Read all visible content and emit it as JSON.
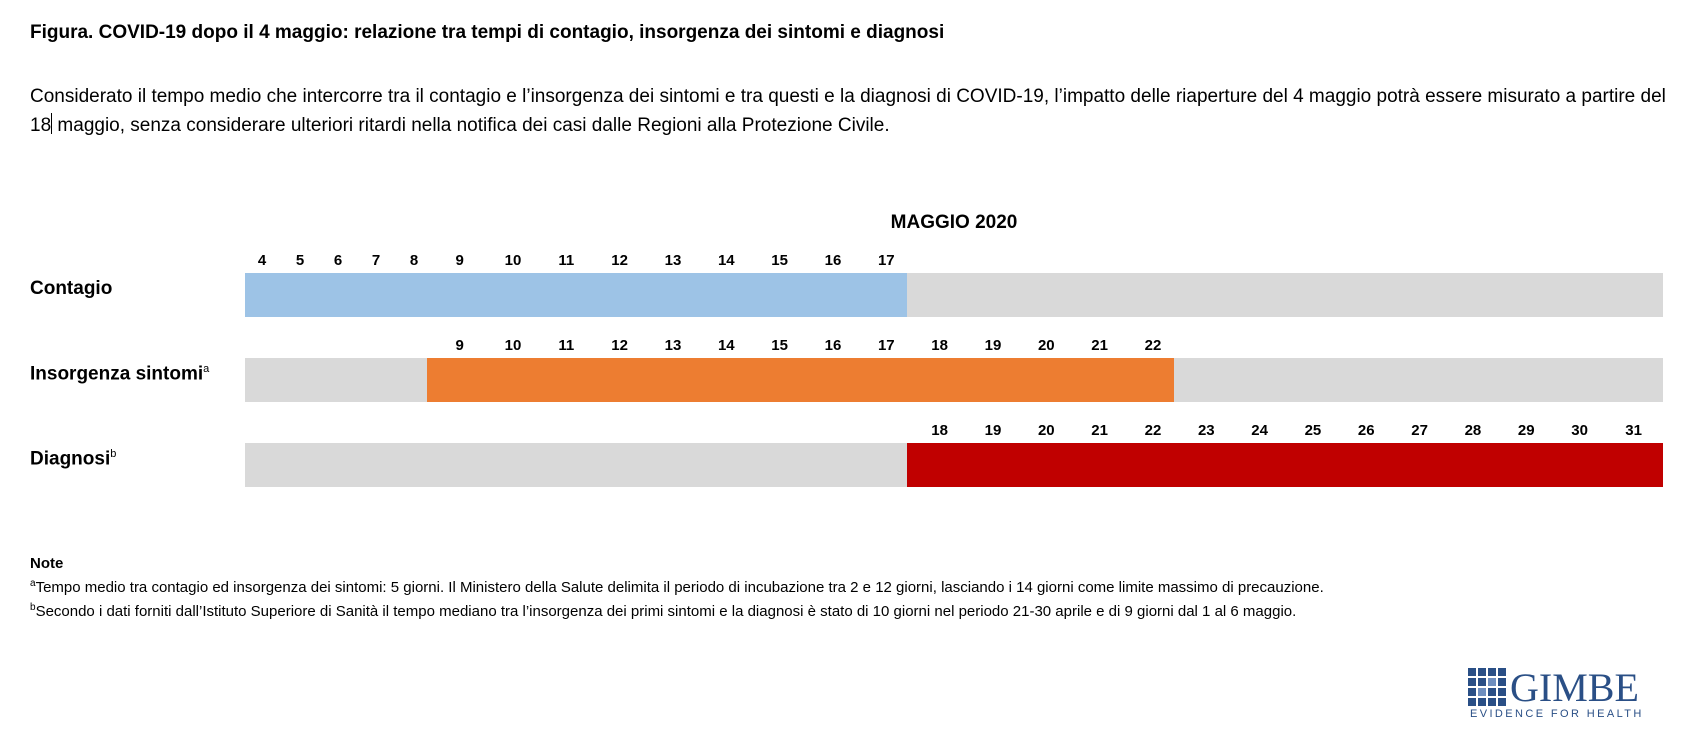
{
  "figure": {
    "title": "Figura. COVID-19 dopo il 4 maggio: relazione tra tempi di contagio, insorgenza dei sintomi e diagnosi",
    "intro_part1": "Considerato il tempo medio che intercorre tra il contagio e l’insorgenza dei sintomi e tra questi e la diagnosi di COVID-19, l’impatto delle riaperture del 4 maggio potrà essere misurato a partire del 18",
    "intro_part2": " maggio, senza considerare ulteriori ritardi nella notifica dei casi dalle Regioni alla Protezione Civile."
  },
  "timeline": {
    "month_label": "MAGGIO 2020",
    "start_day": 4,
    "end_day": 31,
    "rows": [
      {
        "label": "Contagio",
        "sup": "",
        "from": 4,
        "to": 17,
        "color": "#9dc3e6",
        "days": [
          "4",
          "5",
          "6",
          "7",
          "8",
          "9",
          "10",
          "11",
          "12",
          "13",
          "14",
          "15",
          "16",
          "17"
        ]
      },
      {
        "label": "Insorgenza sintomi",
        "sup": "a",
        "from": 9,
        "to": 22,
        "color": "#ed7d31",
        "days": [
          "9",
          "10",
          "11",
          "12",
          "13",
          "14",
          "15",
          "16",
          "17",
          "18",
          "19",
          "20",
          "21",
          "22"
        ]
      },
      {
        "label": "Diagnosi",
        "sup": "b",
        "from": 18,
        "to": 31,
        "color": "#c00000",
        "days": [
          "18",
          "19",
          "20",
          "21",
          "22",
          "23",
          "24",
          "25",
          "26",
          "27",
          "28",
          "29",
          "30",
          "31"
        ]
      }
    ],
    "background_color": "#d9d9d9"
  },
  "notes": {
    "title": "Note",
    "items": [
      {
        "marker": "a",
        "text": "Tempo medio tra contagio ed insorgenza dei sintomi: 5 giorni. Il Ministero della Salute delimita il periodo di incubazione tra 2 e 12 giorni, lasciando i 14 giorni come limite massimo di precauzione."
      },
      {
        "marker": "b",
        "text": "Secondo i dati forniti dall’Istituto Superiore di Sanità il tempo mediano tra l’insorgenza dei primi sintomi e la diagnosi è stato di 10 giorni nel periodo 21-30 aprile e di 9 giorni dal 1 al 6 maggio."
      }
    ]
  },
  "logo": {
    "name": "GIMBE",
    "tagline": "EVIDENCE FOR HEALTH"
  }
}
